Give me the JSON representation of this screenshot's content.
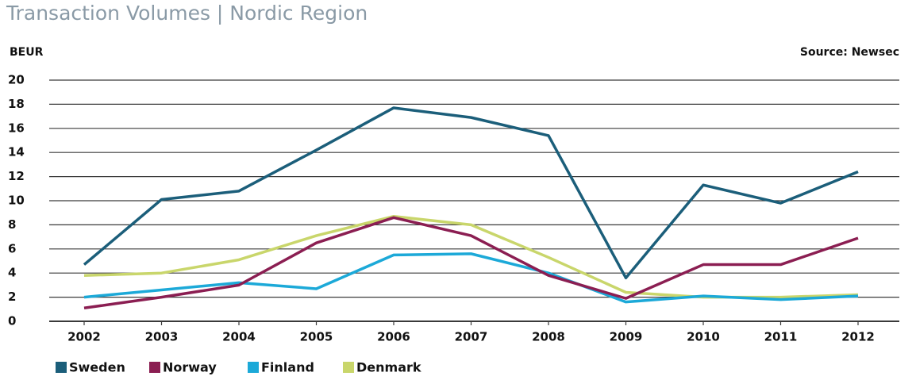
{
  "chart_data": {
    "type": "line",
    "title": "Transaction Volumes | Nordic Region",
    "y_label": "BEUR",
    "source": "Source: Newsec",
    "categories": [
      "2002",
      "2003",
      "2004",
      "2005",
      "2006",
      "2007",
      "2008",
      "2009",
      "2010",
      "2011",
      "2012"
    ],
    "series": [
      {
        "name": "Sweden",
        "color": "#1b5e7a",
        "values": [
          4.7,
          10.1,
          10.8,
          14.2,
          17.7,
          16.9,
          15.4,
          3.6,
          11.3,
          9.8,
          12.4
        ]
      },
      {
        "name": "Norway",
        "color": "#8b1e52",
        "values": [
          1.1,
          2.0,
          3.0,
          6.5,
          8.6,
          7.1,
          3.8,
          1.9,
          4.7,
          4.7,
          6.9
        ]
      },
      {
        "name": "Finland",
        "color": "#1ca9d8",
        "values": [
          2.0,
          2.6,
          3.2,
          2.7,
          5.5,
          5.6,
          4.0,
          1.6,
          2.1,
          1.8,
          2.1
        ]
      },
      {
        "name": "Denmark",
        "color": "#c9d66b",
        "values": [
          3.8,
          4.0,
          5.1,
          7.1,
          8.7,
          8.0,
          5.3,
          2.4,
          2.0,
          2.0,
          2.2
        ]
      }
    ],
    "ylim": [
      0,
      20
    ],
    "yticks": [
      0,
      2,
      4,
      6,
      8,
      10,
      12,
      14,
      16,
      18,
      20
    ],
    "grid": true
  }
}
